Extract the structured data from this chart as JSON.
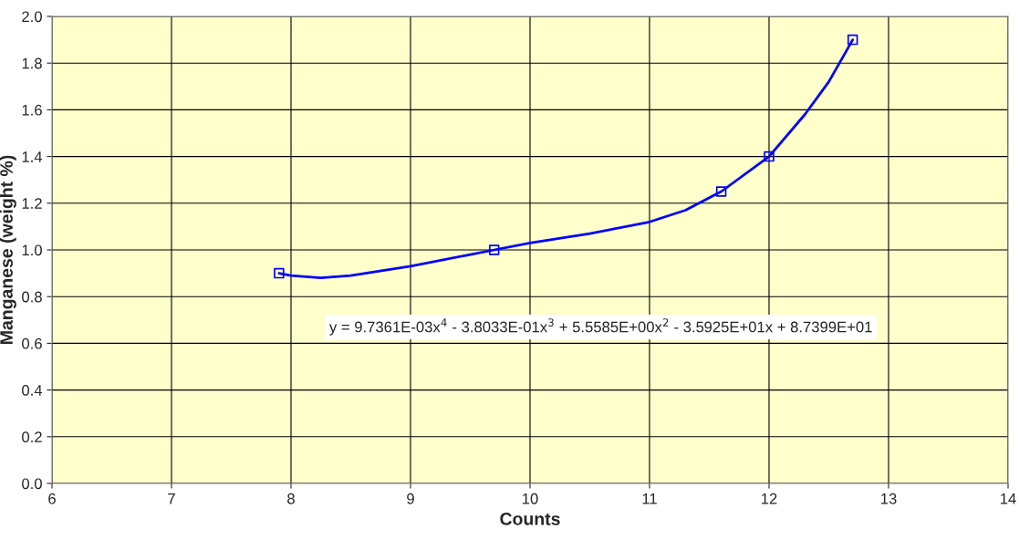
{
  "chart_data": {
    "type": "scatter",
    "xlabel": "Counts",
    "ylabel": "Manganese (weight %)",
    "series": [
      {
        "color": "#0000ff",
        "marker": "square",
        "x": [
          7.9,
          9.7,
          11.6,
          12.0,
          12.7
        ],
        "values": [
          0.9,
          1.0,
          1.25,
          1.4,
          1.9
        ]
      },
      {
        "type": "line",
        "color": "#0000ff",
        "marker": "none",
        "line_style": "solid",
        "x": [
          7.9,
          8.0,
          8.25,
          8.5,
          9.0,
          9.5,
          9.7,
          10.0,
          10.5,
          11.0,
          11.3,
          11.6,
          12.0,
          12.3,
          12.5,
          12.7
        ],
        "values": [
          0.9,
          0.89,
          0.88,
          0.89,
          0.93,
          0.98,
          1.0,
          1.03,
          1.07,
          1.12,
          1.17,
          1.25,
          1.4,
          1.58,
          1.72,
          1.9
        ]
      }
    ],
    "annotations": [
      "y = 9.7361E-03x$^{4}$ - 3.8033E-01x$^{3}$ + 5.5585E+00x$^{2}$ - 3.5925E+01x + 8.7399E+01"
    ],
    "xlim": [
      6,
      14
    ],
    "xticks": [
      6,
      7,
      8,
      9,
      10,
      11,
      12,
      13,
      14
    ],
    "ylim": [
      0.0,
      2.0
    ],
    "yticks": [
      {
        "value": 0.0,
        "label": "0.0"
      },
      {
        "value": 0.2,
        "label": "0.2"
      },
      {
        "value": 0.4,
        "label": "0.4"
      },
      {
        "value": 0.6,
        "label": "0.6"
      },
      {
        "value": 0.8,
        "label": "0.8"
      },
      {
        "value": 1.0,
        "label": "1.0"
      },
      {
        "value": 1.2,
        "label": "1.2"
      },
      {
        "value": 1.4,
        "label": "1.4"
      },
      {
        "value": 1.6,
        "label": "1.6"
      },
      {
        "value": 1.8,
        "label": "1.8"
      },
      {
        "value": 2.0,
        "label": "2.0"
      }
    ],
    "grid": true,
    "legend": false
  }
}
